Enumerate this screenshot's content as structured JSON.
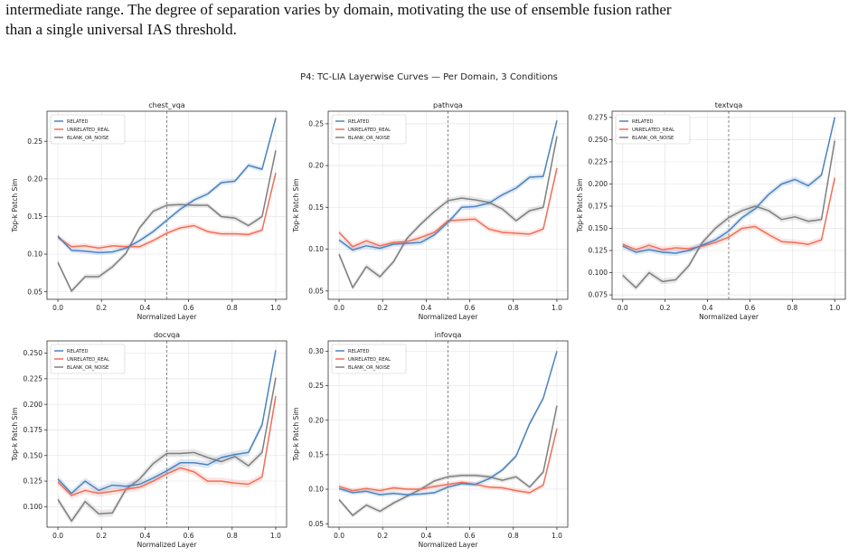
{
  "caption": {
    "line1": "intermediate range. The degree of separation varies by domain, motivating the use of ensemble fusion rather",
    "line2": "than a single universal IAS threshold."
  },
  "figure_title": "P4: TC-LIA Layerwise Curves — Per Domain, 3 Conditions",
  "series_colors": {
    "RELATED": "#4c83c0",
    "UNRELATED_REAL": "#f26d56",
    "BLANK_OR_NOISE": "#7f7f7f"
  },
  "chart_data": [
    {
      "type": "line",
      "title": "chest_vqa",
      "xlabel": "Normalized Layer",
      "ylabel": "Top-k Patch Sim",
      "xlim": [
        -0.05,
        1.05
      ],
      "ylim": [
        0.04,
        0.29
      ],
      "yticks": [
        0.05,
        0.1,
        0.15,
        0.2,
        0.25
      ],
      "ytick_labels": [
        "0.05",
        "0.10",
        "0.15",
        "0.20",
        "0.25"
      ],
      "xticks": [
        0.0,
        0.2,
        0.4,
        0.6,
        0.8,
        1.0
      ],
      "xtick_labels": [
        "0.0",
        "0.2",
        "0.4",
        "0.6",
        "0.8",
        "1.0"
      ],
      "grid": true,
      "legend": "top-left",
      "vline": 0.5,
      "x": [
        0.0,
        0.0625,
        0.125,
        0.1875,
        0.25,
        0.3125,
        0.375,
        0.4375,
        0.5,
        0.5625,
        0.625,
        0.6875,
        0.75,
        0.8125,
        0.875,
        0.9375,
        1.0
      ],
      "series": [
        {
          "name": "RELATED",
          "values": [
            0.124,
            0.105,
            0.104,
            0.102,
            0.103,
            0.108,
            0.118,
            0.13,
            0.145,
            0.16,
            0.172,
            0.18,
            0.195,
            0.197,
            0.218,
            0.213,
            0.281
          ]
        },
        {
          "name": "UNRELATED_REAL",
          "values": [
            0.122,
            0.11,
            0.111,
            0.108,
            0.111,
            0.11,
            0.11,
            0.118,
            0.128,
            0.135,
            0.138,
            0.13,
            0.127,
            0.127,
            0.126,
            0.132,
            0.208
          ]
        },
        {
          "name": "BLANK_OR_NOISE",
          "values": [
            0.089,
            0.051,
            0.07,
            0.07,
            0.083,
            0.101,
            0.135,
            0.157,
            0.165,
            0.166,
            0.165,
            0.165,
            0.15,
            0.148,
            0.138,
            0.15,
            0.238
          ]
        }
      ]
    },
    {
      "type": "line",
      "title": "pathvqa",
      "xlabel": "Normalized Layer",
      "ylabel": "Top-k Patch Sim",
      "xlim": [
        -0.05,
        1.05
      ],
      "ylim": [
        0.04,
        0.265
      ],
      "yticks": [
        0.05,
        0.1,
        0.15,
        0.2,
        0.25
      ],
      "ytick_labels": [
        "0.05",
        "0.10",
        "0.15",
        "0.20",
        "0.25"
      ],
      "xticks": [
        0.0,
        0.2,
        0.4,
        0.6,
        0.8,
        1.0
      ],
      "xtick_labels": [
        "0.0",
        "0.2",
        "0.4",
        "0.6",
        "0.8",
        "1.0"
      ],
      "grid": true,
      "legend": "top-left",
      "vline": 0.5,
      "x": [
        0.0,
        0.0625,
        0.125,
        0.1875,
        0.25,
        0.3125,
        0.375,
        0.4375,
        0.5,
        0.5625,
        0.625,
        0.6875,
        0.75,
        0.8125,
        0.875,
        0.9375,
        1.0
      ],
      "series": [
        {
          "name": "RELATED",
          "values": [
            0.111,
            0.099,
            0.104,
            0.101,
            0.106,
            0.107,
            0.108,
            0.117,
            0.132,
            0.15,
            0.151,
            0.155,
            0.165,
            0.173,
            0.186,
            0.187,
            0.254
          ]
        },
        {
          "name": "UNRELATED_REAL",
          "values": [
            0.12,
            0.103,
            0.11,
            0.104,
            0.108,
            0.109,
            0.114,
            0.12,
            0.134,
            0.135,
            0.136,
            0.124,
            0.12,
            0.119,
            0.118,
            0.124,
            0.197
          ]
        },
        {
          "name": "BLANK_OR_NOISE",
          "values": [
            0.094,
            0.054,
            0.079,
            0.067,
            0.085,
            0.113,
            0.13,
            0.145,
            0.158,
            0.161,
            0.159,
            0.156,
            0.148,
            0.134,
            0.146,
            0.15,
            0.235
          ]
        }
      ]
    },
    {
      "type": "line",
      "title": "textvqa",
      "xlabel": "Normalized Layer",
      "ylabel": "Top-k Patch Sim",
      "xlim": [
        -0.05,
        1.05
      ],
      "ylim": [
        0.07,
        0.282
      ],
      "yticks": [
        0.075,
        0.1,
        0.125,
        0.15,
        0.175,
        0.2,
        0.225,
        0.25,
        0.275
      ],
      "ytick_labels": [
        "0.075",
        "0.100",
        "0.125",
        "0.150",
        "0.175",
        "0.200",
        "0.225",
        "0.250",
        "0.275"
      ],
      "xticks": [
        0.0,
        0.2,
        0.4,
        0.6,
        0.8,
        1.0
      ],
      "xtick_labels": [
        "0.0",
        "0.2",
        "0.4",
        "0.6",
        "0.8",
        "1.0"
      ],
      "grid": true,
      "legend": "top-left",
      "vline": 0.5,
      "x": [
        0.0,
        0.0625,
        0.125,
        0.1875,
        0.25,
        0.3125,
        0.375,
        0.4375,
        0.5,
        0.5625,
        0.625,
        0.6875,
        0.75,
        0.8125,
        0.875,
        0.9375,
        1.0
      ],
      "series": [
        {
          "name": "RELATED",
          "values": [
            0.13,
            0.123,
            0.126,
            0.123,
            0.122,
            0.125,
            0.131,
            0.137,
            0.147,
            0.162,
            0.172,
            0.188,
            0.2,
            0.205,
            0.198,
            0.21,
            0.275
          ]
        },
        {
          "name": "UNRELATED_REAL",
          "values": [
            0.132,
            0.126,
            0.131,
            0.126,
            0.128,
            0.127,
            0.13,
            0.134,
            0.14,
            0.15,
            0.152,
            0.143,
            0.135,
            0.134,
            0.132,
            0.137,
            0.207
          ]
        },
        {
          "name": "BLANK_OR_NOISE",
          "values": [
            0.097,
            0.083,
            0.1,
            0.09,
            0.092,
            0.108,
            0.134,
            0.15,
            0.162,
            0.17,
            0.175,
            0.17,
            0.16,
            0.163,
            0.158,
            0.16,
            0.249
          ]
        }
      ]
    },
    {
      "type": "line",
      "title": "docvqa",
      "xlabel": "Normalized Layer",
      "ylabel": "Top-k Patch Sim",
      "xlim": [
        -0.05,
        1.05
      ],
      "ylim": [
        0.08,
        0.262
      ],
      "yticks": [
        0.1,
        0.125,
        0.15,
        0.175,
        0.2,
        0.225,
        0.25
      ],
      "ytick_labels": [
        "0.100",
        "0.125",
        "0.150",
        "0.175",
        "0.200",
        "0.225",
        "0.250"
      ],
      "xticks": [
        0.0,
        0.2,
        0.4,
        0.6,
        0.8,
        1.0
      ],
      "xtick_labels": [
        "0.0",
        "0.2",
        "0.4",
        "0.6",
        "0.8",
        "1.0"
      ],
      "grid": true,
      "legend": "top-left",
      "vline": 0.5,
      "x": [
        0.0,
        0.0625,
        0.125,
        0.1875,
        0.25,
        0.3125,
        0.375,
        0.4375,
        0.5,
        0.5625,
        0.625,
        0.6875,
        0.75,
        0.8125,
        0.875,
        0.9375,
        1.0
      ],
      "series": [
        {
          "name": "RELATED",
          "values": [
            0.127,
            0.113,
            0.125,
            0.116,
            0.121,
            0.12,
            0.122,
            0.128,
            0.135,
            0.143,
            0.143,
            0.141,
            0.148,
            0.151,
            0.153,
            0.18,
            0.253
          ]
        },
        {
          "name": "UNRELATED_REAL",
          "values": [
            0.124,
            0.111,
            0.116,
            0.113,
            0.115,
            0.117,
            0.119,
            0.125,
            0.132,
            0.138,
            0.134,
            0.125,
            0.125,
            0.123,
            0.122,
            0.129,
            0.208
          ]
        },
        {
          "name": "BLANK_OR_NOISE",
          "values": [
            0.107,
            0.086,
            0.105,
            0.093,
            0.094,
            0.117,
            0.127,
            0.142,
            0.152,
            0.152,
            0.153,
            0.148,
            0.144,
            0.149,
            0.14,
            0.153,
            0.226
          ]
        }
      ]
    },
    {
      "type": "line",
      "title": "infovqa",
      "xlabel": "Normalized Layer",
      "ylabel": "Top-k Patch Sim",
      "xlim": [
        -0.05,
        1.05
      ],
      "ylim": [
        0.045,
        0.315
      ],
      "yticks": [
        0.05,
        0.1,
        0.15,
        0.2,
        0.25,
        0.3
      ],
      "ytick_labels": [
        "0.05",
        "0.10",
        "0.15",
        "0.20",
        "0.25",
        "0.30"
      ],
      "xticks": [
        0.0,
        0.2,
        0.4,
        0.6,
        0.8,
        1.0
      ],
      "xtick_labels": [
        "0.0",
        "0.2",
        "0.4",
        "0.6",
        "0.8",
        "1.0"
      ],
      "grid": true,
      "legend": "top-left",
      "vline": 0.5,
      "x": [
        0.0,
        0.0625,
        0.125,
        0.1875,
        0.25,
        0.3125,
        0.375,
        0.4375,
        0.5,
        0.5625,
        0.625,
        0.6875,
        0.75,
        0.8125,
        0.875,
        0.9375,
        1.0
      ],
      "series": [
        {
          "name": "RELATED",
          "values": [
            0.101,
            0.095,
            0.097,
            0.092,
            0.094,
            0.092,
            0.093,
            0.095,
            0.103,
            0.108,
            0.107,
            0.115,
            0.128,
            0.148,
            0.195,
            0.232,
            0.3
          ]
        },
        {
          "name": "UNRELATED_REAL",
          "values": [
            0.104,
            0.098,
            0.101,
            0.098,
            0.102,
            0.1,
            0.1,
            0.104,
            0.107,
            0.11,
            0.107,
            0.103,
            0.102,
            0.098,
            0.095,
            0.106,
            0.188
          ]
        },
        {
          "name": "BLANK_OR_NOISE",
          "values": [
            0.085,
            0.062,
            0.077,
            0.068,
            0.08,
            0.09,
            0.1,
            0.112,
            0.118,
            0.12,
            0.12,
            0.118,
            0.113,
            0.118,
            0.103,
            0.125,
            0.221
          ]
        }
      ]
    }
  ]
}
